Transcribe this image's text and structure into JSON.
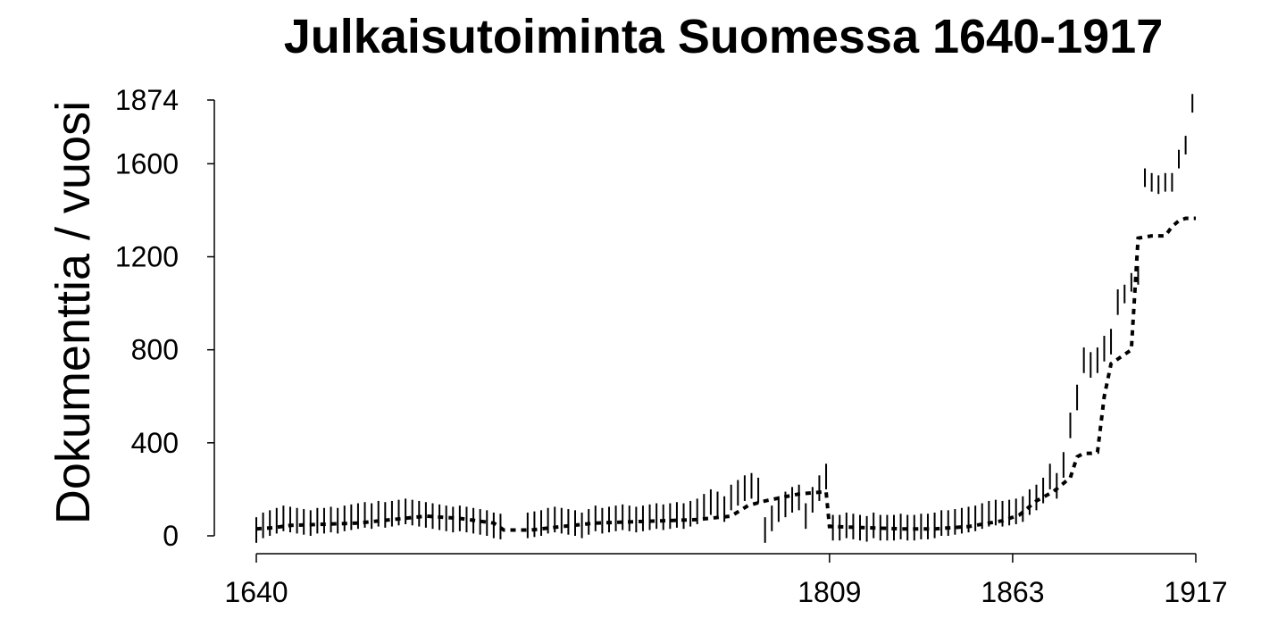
{
  "chart_data": {
    "type": "line",
    "title": "Julkaisutoiminta Suomessa 1640-1917",
    "ylabel": "Dokumenttia / vuosi",
    "xlabel": "",
    "xlim": [
      1640,
      1917
    ],
    "ylim": [
      0,
      1874
    ],
    "x_ticks": [
      "1640",
      "1809",
      "1863",
      "1917"
    ],
    "y_ticks": [
      "0",
      "400",
      "800",
      "1200",
      "1600",
      "1874"
    ],
    "grid": false,
    "legend": "none",
    "series": [
      {
        "style": "dotted",
        "x": [
          1640,
          1645,
          1650,
          1660,
          1670,
          1680,
          1690,
          1700,
          1710,
          1713,
          1721,
          1730,
          1740,
          1750,
          1760,
          1770,
          1780,
          1785,
          1790,
          1795,
          1800,
          1808,
          1809,
          1810,
          1820,
          1830,
          1840,
          1850,
          1860,
          1865,
          1870,
          1875,
          1880,
          1882,
          1884,
          1886,
          1888,
          1890,
          1892,
          1894,
          1896,
          1898,
          1900,
          1902,
          1904,
          1906,
          1908,
          1910,
          1912,
          1914,
          1917
        ],
        "y": [
          30,
          35,
          45,
          50,
          55,
          70,
          85,
          75,
          55,
          25,
          25,
          40,
          55,
          60,
          65,
          70,
          85,
          130,
          150,
          165,
          180,
          190,
          40,
          40,
          35,
          30,
          30,
          40,
          65,
          90,
          150,
          190,
          250,
          340,
          355,
          355,
          360,
          600,
          740,
          760,
          780,
          800,
          1280,
          1285,
          1290,
          1290,
          1290,
          1330,
          1355,
          1365,
          1365
        ]
      },
      {
        "style": "vertical-ranges",
        "x": [
          1640,
          1642,
          1644,
          1646,
          1648,
          1650,
          1652,
          1654,
          1656,
          1658,
          1660,
          1662,
          1664,
          1666,
          1668,
          1670,
          1672,
          1674,
          1676,
          1678,
          1680,
          1682,
          1684,
          1686,
          1688,
          1690,
          1692,
          1694,
          1696,
          1698,
          1700,
          1702,
          1704,
          1706,
          1708,
          1710,
          1712,
          1720,
          1722,
          1724,
          1726,
          1728,
          1730,
          1732,
          1734,
          1736,
          1738,
          1740,
          1742,
          1744,
          1746,
          1748,
          1750,
          1752,
          1754,
          1756,
          1758,
          1760,
          1762,
          1764,
          1766,
          1768,
          1770,
          1772,
          1774,
          1776,
          1778,
          1780,
          1782,
          1784,
          1786,
          1788,
          1790,
          1792,
          1794,
          1796,
          1798,
          1800,
          1802,
          1804,
          1806,
          1808,
          1810,
          1812,
          1814,
          1816,
          1818,
          1820,
          1822,
          1824,
          1826,
          1828,
          1830,
          1832,
          1834,
          1836,
          1838,
          1840,
          1842,
          1844,
          1846,
          1848,
          1850,
          1852,
          1854,
          1856,
          1858,
          1860,
          1862,
          1864,
          1866,
          1868,
          1870,
          1872,
          1874,
          1876,
          1878,
          1880,
          1882,
          1884,
          1886,
          1888,
          1890,
          1892,
          1894,
          1896,
          1898,
          1900,
          1902,
          1904,
          1906,
          1908,
          1910,
          1912,
          1914,
          1916
        ],
        "low": [
          -30,
          -10,
          0,
          10,
          20,
          15,
          10,
          5,
          0,
          10,
          10,
          15,
          10,
          20,
          25,
          30,
          35,
          30,
          40,
          35,
          40,
          45,
          50,
          45,
          40,
          35,
          30,
          25,
          20,
          15,
          20,
          15,
          10,
          5,
          0,
          -10,
          -15,
          -10,
          -5,
          0,
          10,
          15,
          10,
          5,
          0,
          -10,
          5,
          20,
          10,
          15,
          20,
          25,
          20,
          15,
          20,
          25,
          30,
          25,
          30,
          35,
          30,
          40,
          50,
          70,
          90,
          80,
          60,
          110,
          130,
          150,
          160,
          140,
          -30,
          20,
          60,
          80,
          100,
          110,
          30,
          100,
          150,
          200,
          -20,
          -20,
          -10,
          -15,
          -20,
          -25,
          -10,
          -20,
          -20,
          -20,
          -15,
          -20,
          -20,
          -15,
          -15,
          -10,
          0,
          0,
          5,
          10,
          15,
          20,
          30,
          40,
          45,
          40,
          45,
          50,
          60,
          90,
          110,
          140,
          200,
          160,
          250,
          420,
          540,
          700,
          680,
          700,
          750,
          780,
          950,
          1000,
          1050,
          1080,
          1500,
          1480,
          1470,
          1480,
          1480,
          1580,
          1640,
          1820
        ]
      }
    ]
  }
}
